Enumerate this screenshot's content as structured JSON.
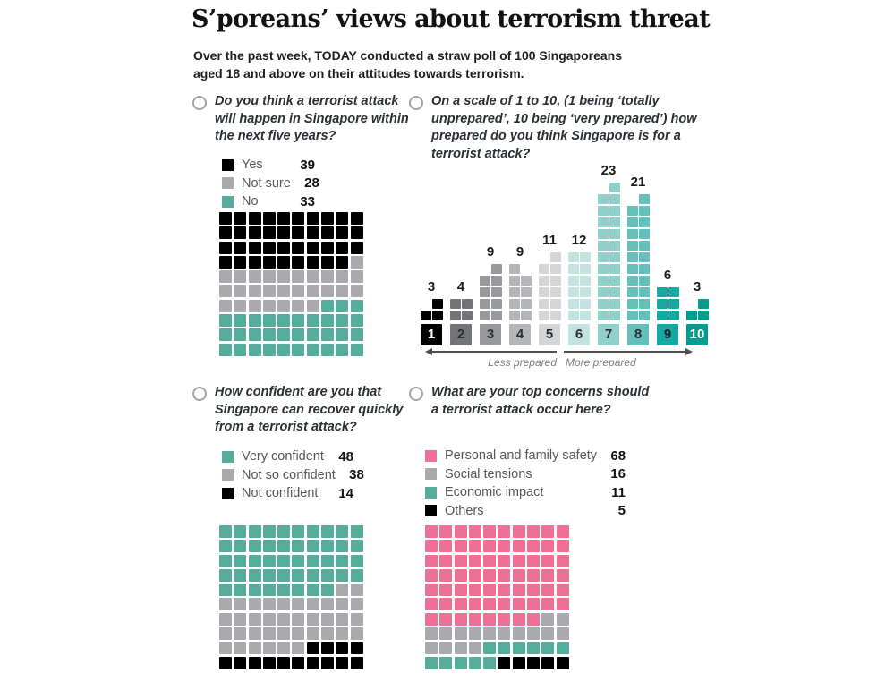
{
  "title": "S’poreans’ views about terrorism threat",
  "subtitle": "Over the past week, TODAY conducted a straw poll of 100 Singaporeans aged 18 and above on their attitudes towards terrorism.",
  "colors": {
    "black": "#000000",
    "gray": "#a8aaad",
    "teal": "#56ad9c",
    "pink": "#ee7096",
    "scale": [
      "#000000",
      "#737477",
      "#98999c",
      "#b4b5b8",
      "#d5d6d7",
      "#c3e2e0",
      "#8ed1cb",
      "#63c0bb",
      "#16a9a2",
      "#009d90"
    ],
    "scale_text": [
      "#ffffff",
      "#2b2e33",
      "#2b2e33",
      "#2b2e33",
      "#2b2e33",
      "#2b2e33",
      "#2b2e33",
      "#2b2e33",
      "#1e2125",
      "#ffffff"
    ]
  },
  "panels": [
    {
      "question": "Do you think a terrorist attack will happen in Singapore within the next five years?",
      "legend": [
        {
          "label": "Yes",
          "value": 39,
          "color": "black"
        },
        {
          "label": "Not sure",
          "value": 28,
          "color": "gray"
        },
        {
          "label": "No",
          "value": 33,
          "color": "teal"
        }
      ]
    },
    {
      "question": "On a scale of 1 to 10, (1 being ‘totally unprepared’, 10 being ‘very prepared’) how prepared do you think Singapore is for a terrorist attack?",
      "scale": {
        "labels": [
          "1",
          "2",
          "3",
          "4",
          "5",
          "6",
          "7",
          "8",
          "9",
          "10"
        ],
        "values": [
          3,
          4,
          9,
          9,
          11,
          12,
          23,
          21,
          6,
          3
        ],
        "less_label": "Less prepared",
        "more_label": "More prepared"
      }
    },
    {
      "question": "How confident are you that Singapore can recover quickly from a terrorist attack?",
      "legend": [
        {
          "label": "Very confident",
          "value": 48,
          "color": "teal"
        },
        {
          "label": "Not so confident",
          "value": 38,
          "color": "gray"
        },
        {
          "label": "Not confident",
          "value": 14,
          "color": "black"
        }
      ]
    },
    {
      "question": "What are your top concerns should a terrorist attack occur here?",
      "legend": [
        {
          "label": "Personal and family safety",
          "value": 68,
          "color": "pink"
        },
        {
          "label": "Social tensions",
          "value": 16,
          "color": "gray"
        },
        {
          "label": "Economic impact",
          "value": 11,
          "color": "teal"
        },
        {
          "label": "Others",
          "value": 5,
          "color": "black"
        }
      ]
    }
  ],
  "chart_data": [
    {
      "type": "waffle",
      "title": "Do you think a terrorist attack will happen in Singapore within the next five years?",
      "categories": [
        "Yes",
        "Not sure",
        "No"
      ],
      "values": [
        39,
        28,
        33
      ],
      "colors": [
        "#000000",
        "#a8aaad",
        "#56ad9c"
      ],
      "grid": "10x10",
      "legend_position": "above"
    },
    {
      "type": "bar",
      "title": "On a scale of 1 to 10, (1 being ‘totally unprepared’, 10 being ‘very prepared’) how prepared do you think Singapore is for a terrorist attack?",
      "categories": [
        "1",
        "2",
        "3",
        "4",
        "5",
        "6",
        "7",
        "8",
        "9",
        "10"
      ],
      "values": [
        3,
        4,
        9,
        9,
        11,
        12,
        23,
        21,
        6,
        3
      ],
      "xlabel": "Less prepared / More prepared",
      "ylabel": "",
      "annotations": [
        "Less prepared",
        "More prepared"
      ],
      "style": "stacked unit squares, 2 squares per row, color gradient black-gray-teal"
    },
    {
      "type": "waffle",
      "title": "How confident are you that Singapore can recover quickly from a terrorist attack?",
      "categories": [
        "Very confident",
        "Not so confident",
        "Not confident"
      ],
      "values": [
        48,
        38,
        14
      ],
      "colors": [
        "#56ad9c",
        "#a8aaad",
        "#000000"
      ],
      "grid": "10x10",
      "legend_position": "above"
    },
    {
      "type": "waffle",
      "title": "What are your top concerns should a terrorist attack occur here?",
      "categories": [
        "Personal and family safety",
        "Social tensions",
        "Economic impact",
        "Others"
      ],
      "values": [
        68,
        16,
        11,
        5
      ],
      "colors": [
        "#ee7096",
        "#a8aaad",
        "#56ad9c",
        "#000000"
      ],
      "grid": "10x10",
      "legend_position": "above"
    }
  ]
}
